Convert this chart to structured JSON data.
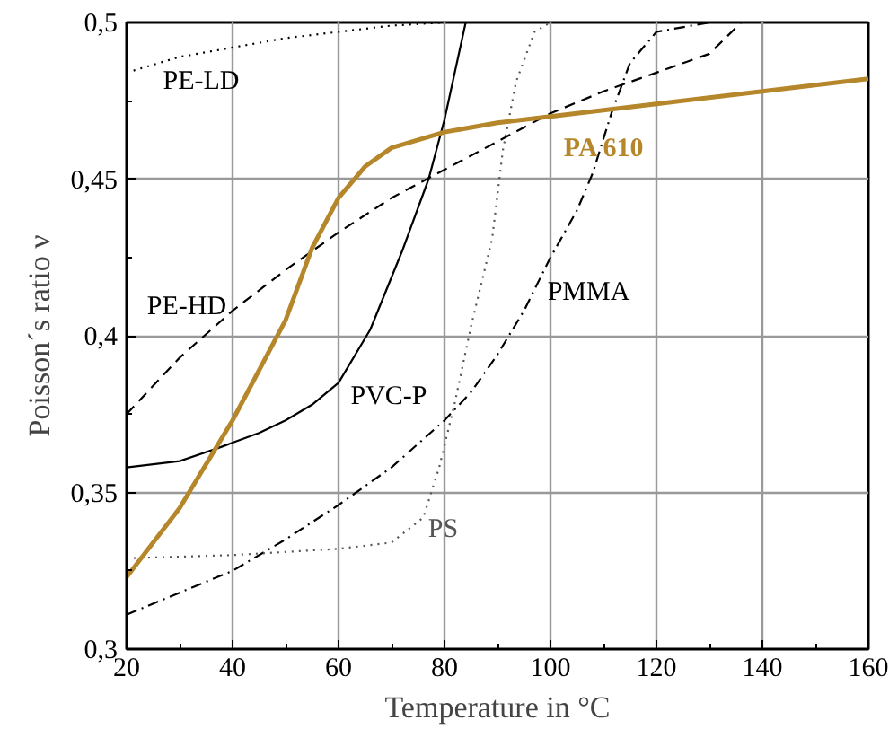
{
  "chart_data": {
    "type": "line",
    "xlabel": "Temperature in °C",
    "ylabel": "Poisson´s ratio ν",
    "xlim": [
      20,
      160
    ],
    "xticks": [
      20,
      40,
      60,
      80,
      100,
      120,
      140,
      160
    ],
    "ylim": [
      0.3,
      0.5
    ],
    "yticks": [
      {
        "value": 0.3,
        "label": "0,3"
      },
      {
        "value": 0.35,
        "label": "0,35"
      },
      {
        "value": 0.4,
        "label": "0,4"
      },
      {
        "value": 0.45,
        "label": "0,45"
      },
      {
        "value": 0.5,
        "label": "0,5"
      }
    ],
    "grid": true,
    "marker": "none",
    "series": [
      {
        "name": "PE-LD",
        "color": "#000000",
        "line_style": "dotted",
        "x": [
          20,
          30,
          40,
          50,
          60,
          70,
          80
        ],
        "values": [
          0.484,
          0.489,
          0.492,
          0.495,
          0.497,
          0.499,
          0.5
        ]
      },
      {
        "name": "PE-HD",
        "color": "#000000",
        "line_style": "dashed",
        "x": [
          20,
          30,
          40,
          50,
          60,
          70,
          80,
          90,
          100,
          110,
          120,
          130,
          136
        ],
        "values": [
          0.375,
          0.393,
          0.408,
          0.421,
          0.433,
          0.444,
          0.453,
          0.462,
          0.471,
          0.478,
          0.484,
          0.49,
          0.5
        ]
      },
      {
        "name": "PVC-P",
        "color": "#000000",
        "line_style": "solid",
        "x": [
          20,
          30,
          37,
          45,
          50,
          55,
          60,
          66,
          72,
          77,
          80,
          84
        ],
        "values": [
          0.358,
          0.36,
          0.364,
          0.369,
          0.373,
          0.378,
          0.385,
          0.402,
          0.427,
          0.45,
          0.469,
          0.5
        ]
      },
      {
        "name": "PMMA",
        "color": "#000000",
        "line_style": "dashdot",
        "x": [
          20,
          30,
          40,
          50,
          60,
          70,
          80,
          85,
          90,
          95,
          100,
          105,
          108,
          111.5,
          115,
          120,
          130
        ],
        "values": [
          0.311,
          0.318,
          0.325,
          0.335,
          0.346,
          0.358,
          0.373,
          0.382,
          0.394,
          0.408,
          0.425,
          0.44,
          0.452,
          0.471,
          0.487,
          0.497,
          0.5
        ]
      },
      {
        "name": "PS",
        "color": "#555555",
        "line_style": "dotted",
        "x": [
          20,
          40,
          60,
          70,
          76,
          79,
          82,
          85,
          89,
          91,
          93.5,
          97,
          100
        ],
        "values": [
          0.329,
          0.33,
          0.332,
          0.334,
          0.342,
          0.358,
          0.379,
          0.403,
          0.431,
          0.459,
          0.481,
          0.497,
          0.5
        ]
      },
      {
        "name": "PA 610",
        "color": "#b5862a",
        "line_style": "solid",
        "x": [
          20,
          30,
          40,
          50,
          55,
          60,
          65,
          70,
          80,
          90,
          100,
          120,
          140,
          160
        ],
        "values": [
          0.323,
          0.345,
          0.373,
          0.405,
          0.428,
          0.444,
          0.454,
          0.46,
          0.465,
          0.468,
          0.47,
          0.474,
          0.478,
          0.482
        ]
      }
    ]
  }
}
